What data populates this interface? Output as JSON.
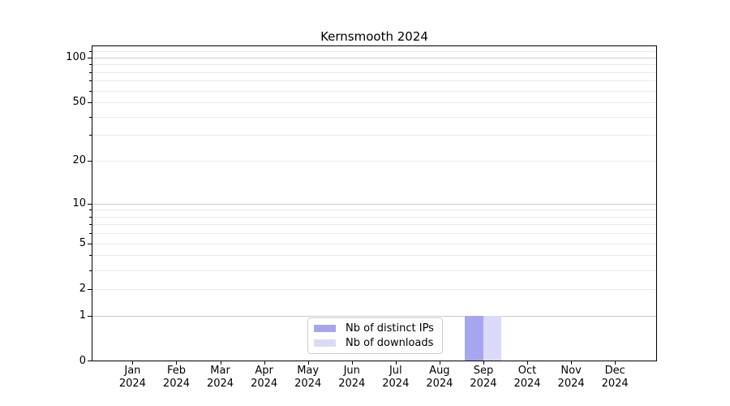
{
  "window": {
    "background": "#ffffff"
  },
  "chart_data": {
    "type": "bar",
    "title": "Kernsmooth 2024",
    "scale": "log1p",
    "categories": [
      "Jan",
      "Feb",
      "Mar",
      "Apr",
      "May",
      "Jun",
      "Jul",
      "Aug",
      "Sep",
      "Oct",
      "Nov",
      "Dec"
    ],
    "category_year": "2024",
    "series": [
      {
        "name": "Nb of distinct IPs",
        "color": "#a6a6f0",
        "values": [
          0,
          0,
          0,
          0,
          0,
          0,
          0,
          0,
          1,
          0,
          0,
          0
        ]
      },
      {
        "name": "Nb of downloads",
        "color": "#dadaf8",
        "values": [
          0,
          0,
          0,
          0,
          0,
          0,
          0,
          0,
          1,
          0,
          0,
          0
        ]
      }
    ],
    "y_ticks": [
      0,
      1,
      2,
      5,
      10,
      20,
      50,
      100
    ],
    "y_minor_ticks": [
      3,
      4,
      6,
      7,
      8,
      9,
      30,
      40,
      60,
      70,
      80,
      90,
      110
    ],
    "y_major_gridline_values": [
      1,
      10,
      100
    ],
    "ylim": [
      0,
      119
    ],
    "xlabel": "",
    "ylabel": "",
    "grid": "horizontal",
    "legend_position": "lower center"
  },
  "colors": {
    "major_gridline": "#c9c9c9",
    "minor_gridline": "#eaeaea",
    "axis": "#000000",
    "legend_border": "#cccccc",
    "text": "#000000"
  }
}
